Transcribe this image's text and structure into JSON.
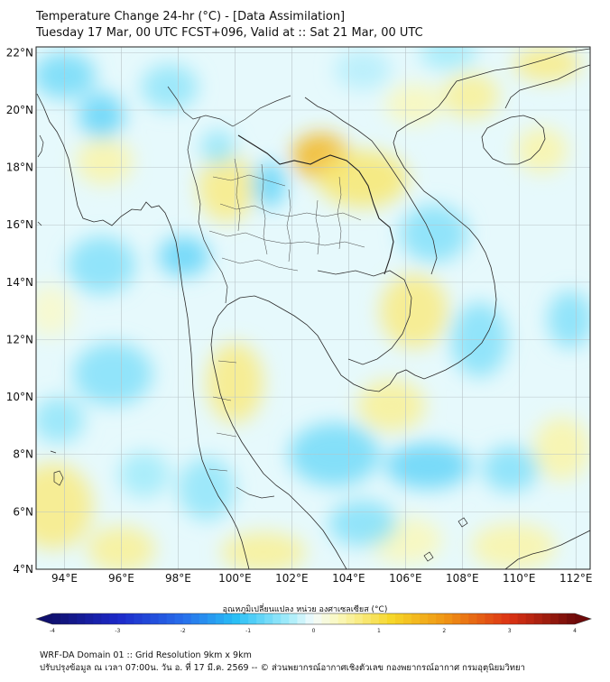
{
  "title": {
    "line1": "Temperature Change 24-hr (°C) - [Data Assimilation]",
    "line2": "Tuesday 17 Mar, 00 UTC FCST+096, Valid at :: Sat 21 Mar, 00 UTC"
  },
  "map": {
    "lon_range": [
      93,
      112.5
    ],
    "lat_range": [
      4,
      22.2
    ],
    "lat_ticks": [
      "22°N",
      "20°N",
      "18°N",
      "16°N",
      "14°N",
      "12°N",
      "10°N",
      "8°N",
      "6°N",
      "4°N"
    ],
    "lat_values": [
      22,
      20,
      18,
      16,
      14,
      12,
      10,
      8,
      6,
      4
    ],
    "lon_ticks": [
      "94°E",
      "96°E",
      "98°E",
      "100°E",
      "102°E",
      "104°E",
      "106°E",
      "108°E",
      "110°E",
      "112°E"
    ],
    "lon_values": [
      94,
      96,
      98,
      100,
      102,
      104,
      106,
      108,
      110,
      112
    ],
    "field_blobs": [
      {
        "lon": 103.0,
        "lat": 18.4,
        "value": 1.6,
        "rx": 1.0,
        "ry": 0.8
      },
      {
        "lon": 104.5,
        "lat": 17.6,
        "value": 0.8,
        "rx": 1.6,
        "ry": 1.0
      },
      {
        "lon": 99.7,
        "lat": 17.3,
        "value": 0.7,
        "rx": 1.0,
        "ry": 1.2
      },
      {
        "lon": 106.3,
        "lat": 13.0,
        "value": 0.7,
        "rx": 1.2,
        "ry": 1.3
      },
      {
        "lon": 100.0,
        "lat": 10.5,
        "value": 0.7,
        "rx": 1.0,
        "ry": 1.4
      },
      {
        "lon": 105.5,
        "lat": 9.7,
        "value": 0.6,
        "rx": 1.2,
        "ry": 0.9
      },
      {
        "lon": 95.4,
        "lat": 18.2,
        "value": 0.5,
        "rx": 1.0,
        "ry": 0.8
      },
      {
        "lon": 93.6,
        "lat": 6.2,
        "value": 0.7,
        "rx": 1.4,
        "ry": 1.5
      },
      {
        "lon": 96.0,
        "lat": 4.7,
        "value": 0.6,
        "rx": 1.2,
        "ry": 0.8
      },
      {
        "lon": 101.0,
        "lat": 4.6,
        "value": 0.6,
        "rx": 1.5,
        "ry": 0.7
      },
      {
        "lon": 106.0,
        "lat": 5.0,
        "value": 0.4,
        "rx": 1.3,
        "ry": 0.8
      },
      {
        "lon": 109.8,
        "lat": 4.8,
        "value": 0.5,
        "rx": 1.5,
        "ry": 0.8
      },
      {
        "lon": 111.5,
        "lat": 8.2,
        "value": 0.5,
        "rx": 1.0,
        "ry": 1.1
      },
      {
        "lon": 108.3,
        "lat": 20.5,
        "value": 0.6,
        "rx": 1.0,
        "ry": 0.8
      },
      {
        "lon": 111.0,
        "lat": 21.6,
        "value": 0.7,
        "rx": 1.2,
        "ry": 0.6
      },
      {
        "lon": 110.8,
        "lat": 18.6,
        "value": 0.5,
        "rx": 0.9,
        "ry": 0.8
      },
      {
        "lon": 106.3,
        "lat": 20.2,
        "value": 0.4,
        "rx": 1.0,
        "ry": 0.7
      },
      {
        "lon": 93.5,
        "lat": 13.0,
        "value": 0.3,
        "rx": 0.8,
        "ry": 0.9
      },
      {
        "lon": 94.0,
        "lat": 21.2,
        "value": -0.7,
        "rx": 1.1,
        "ry": 0.8
      },
      {
        "lon": 95.3,
        "lat": 19.8,
        "value": -0.8,
        "rx": 0.8,
        "ry": 0.8
      },
      {
        "lon": 97.7,
        "lat": 20.8,
        "value": -0.5,
        "rx": 1.0,
        "ry": 0.8
      },
      {
        "lon": 101.2,
        "lat": 17.4,
        "value": -0.8,
        "rx": 0.6,
        "ry": 0.8
      },
      {
        "lon": 99.4,
        "lat": 18.7,
        "value": -0.5,
        "rx": 0.6,
        "ry": 0.6
      },
      {
        "lon": 98.2,
        "lat": 14.9,
        "value": -0.8,
        "rx": 0.9,
        "ry": 0.7
      },
      {
        "lon": 95.3,
        "lat": 14.6,
        "value": -0.6,
        "rx": 1.2,
        "ry": 1.0
      },
      {
        "lon": 95.7,
        "lat": 10.8,
        "value": -0.6,
        "rx": 1.4,
        "ry": 1.1
      },
      {
        "lon": 93.8,
        "lat": 9.2,
        "value": -0.5,
        "rx": 0.9,
        "ry": 0.8
      },
      {
        "lon": 103.5,
        "lat": 8.0,
        "value": -0.7,
        "rx": 1.6,
        "ry": 1.1
      },
      {
        "lon": 106.8,
        "lat": 7.6,
        "value": -0.8,
        "rx": 1.5,
        "ry": 0.8
      },
      {
        "lon": 99.0,
        "lat": 6.8,
        "value": -0.5,
        "rx": 1.0,
        "ry": 1.1
      },
      {
        "lon": 104.5,
        "lat": 5.6,
        "value": -0.6,
        "rx": 1.2,
        "ry": 0.8
      },
      {
        "lon": 108.6,
        "lat": 12.0,
        "value": -0.6,
        "rx": 1.0,
        "ry": 1.3
      },
      {
        "lon": 107.0,
        "lat": 15.7,
        "value": -0.6,
        "rx": 1.2,
        "ry": 1.0
      },
      {
        "lon": 111.8,
        "lat": 12.7,
        "value": -0.6,
        "rx": 0.8,
        "ry": 1.0
      },
      {
        "lon": 109.7,
        "lat": 7.5,
        "value": -0.6,
        "rx": 1.0,
        "ry": 0.8
      },
      {
        "lon": 107.5,
        "lat": 22.0,
        "value": -0.4,
        "rx": 1.0,
        "ry": 0.6
      },
      {
        "lon": 104.5,
        "lat": 21.4,
        "value": -0.3,
        "rx": 1.0,
        "ry": 0.7
      },
      {
        "lon": 96.8,
        "lat": 7.3,
        "value": -0.4,
        "rx": 0.9,
        "ry": 0.8
      }
    ]
  },
  "colorbar": {
    "title": "อุณหภูมิเปลี่ยนแปลง หน่วย องศาเซลเซียส (°C)",
    "min": -4,
    "max": 4,
    "tick_labels": [
      "-4",
      "-3",
      "-2",
      "-1",
      "0",
      "1",
      "2",
      "3",
      "4"
    ],
    "tick_values": [
      -4,
      -3,
      -2,
      -1,
      0,
      1,
      2,
      3,
      4
    ]
  },
  "footer": {
    "line1": "WRF-DA Domain 01 :: Grid Resolution 9km x 9km",
    "line2": "ปรับปรุงข้อมูล ณ เวลา 07:00น. วัน อ. ที่ 17 มี.ค. 2569 -- © ส่วนพยากรณ์อากาศเชิงตัวเลข กองพยากรณ์อากาศ กรมอุตุนิยมวิทยา"
  }
}
